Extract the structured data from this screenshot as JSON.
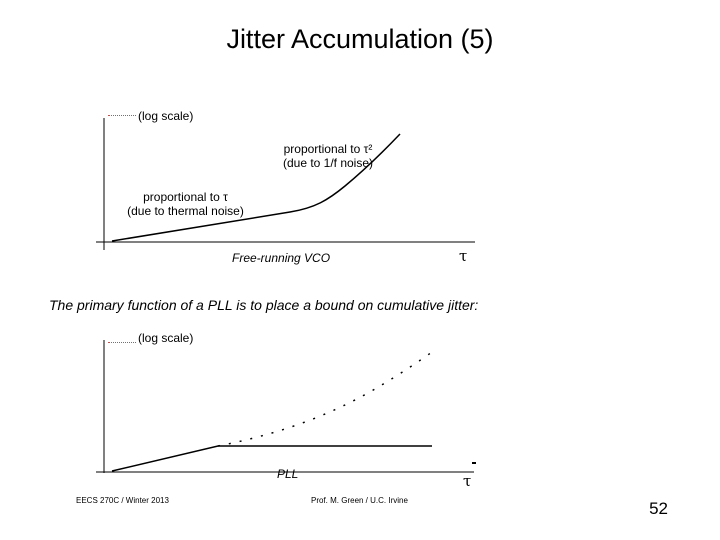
{
  "title": "Jitter Accumulation (5)",
  "top_plot": {
    "y_axis_label": "(log scale)",
    "annotation_t2": {
      "line1": "proportional to τ²",
      "line2": "(due to 1/f noise)"
    },
    "annotation_t": {
      "line1": "proportional to τ",
      "line2": "(due to thermal noise)"
    },
    "caption": "Free-running VCO",
    "x_axis_label": "τ"
  },
  "statement": "The primary function of a PLL is to place a bound on cumulative jitter:",
  "bottom_plot": {
    "y_axis_label": "(log scale)",
    "caption": "PLL",
    "x_axis_label": "τ"
  },
  "footer": {
    "left": "EECS 270C / Winter 2013",
    "middle": "Prof. M. Green / U.C. Irvine",
    "page": "52"
  }
}
